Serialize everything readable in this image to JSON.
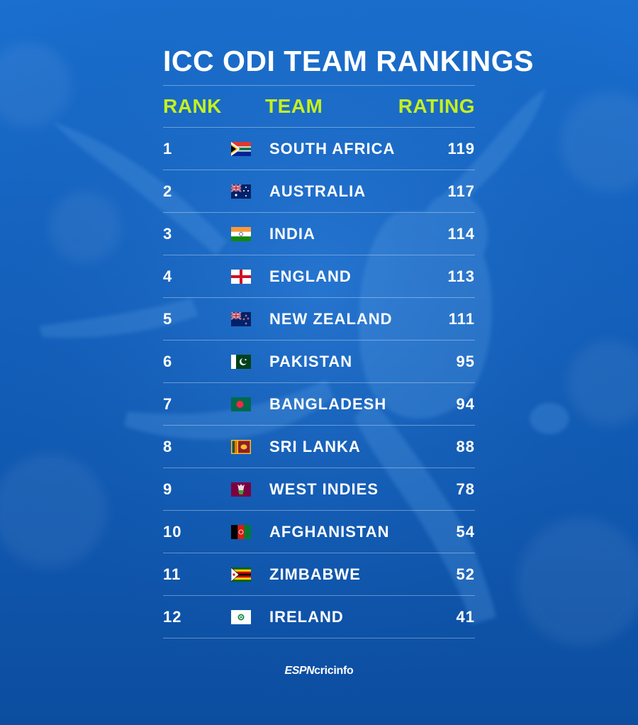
{
  "title": "ICC ODI TEAM RANKINGS",
  "headers": {
    "rank": "RANK",
    "team": "TEAM",
    "rating": "RATING"
  },
  "rows": [
    {
      "rank": "1",
      "team": "SOUTH AFRICA",
      "rating": "119",
      "flag": "flag-south-africa-icon"
    },
    {
      "rank": "2",
      "team": "AUSTRALIA",
      "rating": "117",
      "flag": "flag-australia-icon"
    },
    {
      "rank": "3",
      "team": "INDIA",
      "rating": "114",
      "flag": "flag-india-icon"
    },
    {
      "rank": "4",
      "team": "ENGLAND",
      "rating": "113",
      "flag": "flag-england-icon"
    },
    {
      "rank": "5",
      "team": "NEW ZEALAND",
      "rating": "111",
      "flag": "flag-new-zealand-icon"
    },
    {
      "rank": "6",
      "team": "PAKISTAN",
      "rating": "95",
      "flag": "flag-pakistan-icon"
    },
    {
      "rank": "7",
      "team": "BANGLADESH",
      "rating": "94",
      "flag": "flag-bangladesh-icon"
    },
    {
      "rank": "8",
      "team": "SRI LANKA",
      "rating": "88",
      "flag": "flag-sri-lanka-icon"
    },
    {
      "rank": "9",
      "team": "WEST INDIES",
      "rating": "78",
      "flag": "flag-west-indies-icon"
    },
    {
      "rank": "10",
      "team": "AFGHANISTAN",
      "rating": "54",
      "flag": "flag-afghanistan-icon"
    },
    {
      "rank": "11",
      "team": "ZIMBABWE",
      "rating": "52",
      "flag": "flag-zimbabwe-icon"
    },
    {
      "rank": "12",
      "team": "IRELAND",
      "rating": "41",
      "flag": "flag-ireland-icon"
    }
  ],
  "brand": {
    "espn": "ESPN",
    "name": "cricinfo"
  },
  "colors": {
    "background": "#1461bd",
    "header_accent": "#c6f01e",
    "text": "#ffffff"
  }
}
